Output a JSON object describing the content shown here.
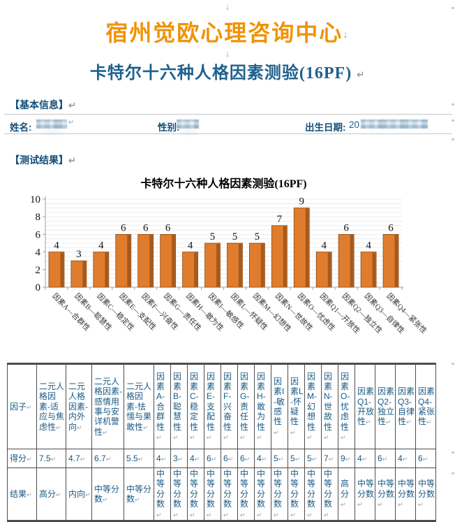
{
  "marks": {
    "down": "↓",
    "return": "↵"
  },
  "colors": {
    "title_orange": "#f09305",
    "heading_blue": "#1e618d",
    "label_blue": "#124e78",
    "table_text": "#1a5a82",
    "bar_fill": "#e07c2e",
    "bar_shade": "#a55a1d",
    "bar_stroke": "#8a4a12"
  },
  "header": {
    "title": "宿州觉欧心理咨询中心",
    "subtitle": "卡特尔十六种人格因素测验(16PF)"
  },
  "basic_info": {
    "section_title": "【基本信息】",
    "fields": [
      {
        "label": "姓名:",
        "value_visible": "",
        "redacted": true
      },
      {
        "label": "性别:",
        "value_visible": "",
        "redacted": true
      },
      {
        "label": "出生日期:",
        "value_visible": "20",
        "redacted": true
      }
    ]
  },
  "results": {
    "section_title": "【测试结果】"
  },
  "chart_data": {
    "type": "bar",
    "title": "卡特尔十六种人格因素测验(16PF)",
    "categories": [
      "因素A—合群性",
      "因素B—聪慧性",
      "因素C—稳定性",
      "因素E—支配性",
      "因素F—兴奋性",
      "因素G—责任性",
      "因素H—敢为性",
      "因素I—敏感性",
      "因素L—怀疑性",
      "因素M—幻想性",
      "因素N—世故性",
      "因素O—忧虑性",
      "因素Q1—开放性",
      "因素Q2—独立性",
      "因素Q3—自律性",
      "因素Q4—紧张性"
    ],
    "values": [
      4,
      3,
      4,
      6,
      6,
      6,
      4,
      5,
      5,
      5,
      7,
      9,
      4,
      6,
      4,
      6
    ],
    "xlabel": "",
    "ylabel": "",
    "ylim": [
      0,
      10
    ],
    "yticks": [
      0,
      2,
      4,
      6,
      8,
      10
    ],
    "grid_step": 0.5,
    "grid": true,
    "legend": false
  },
  "table": {
    "row_labels": [
      "因子",
      "得分",
      "结果"
    ],
    "columns": [
      {
        "factor": "二元人格因素-适应与焦虑性",
        "score": "7.5",
        "result": "高分"
      },
      {
        "factor": "二元人格因素-内外向",
        "score": "4.7",
        "result": "内向"
      },
      {
        "factor": "二元人格因素-感情用事与安详机警性",
        "score": "6.7",
        "result": "中等分数"
      },
      {
        "factor": "二元人格因素-怯懦与果敢性",
        "score": "5.5",
        "result": "中等分数"
      },
      {
        "factor": "因素A-合群性",
        "score": "4",
        "result": "中等分数"
      },
      {
        "factor": "因素B-聪慧性",
        "score": "3",
        "result": "中等分数"
      },
      {
        "factor": "因素C-稳定性",
        "score": "4",
        "result": "中等分数"
      },
      {
        "factor": "因素E-支配性",
        "score": "6",
        "result": "中等分数"
      },
      {
        "factor": "因素F-兴奋性",
        "score": "6",
        "result": "中等分数"
      },
      {
        "factor": "因素G-责任性",
        "score": "6",
        "result": "中等分数"
      },
      {
        "factor": "因素H-敢为性",
        "score": "4",
        "result": "中等分数"
      },
      {
        "factor": "因素I-敏感性",
        "score": "5",
        "result": "中等分数"
      },
      {
        "factor": "因素L-怀疑性",
        "score": "5",
        "result": "中等分数"
      },
      {
        "factor": "因素M-幻想性",
        "score": "5",
        "result": "中等分数"
      },
      {
        "factor": "因素N-世故性",
        "score": "7",
        "result": "中等分数"
      },
      {
        "factor": "因素O-忧虑性",
        "score": "9",
        "result": "高分"
      },
      {
        "factor": "因素Q1-开放性",
        "score": "4",
        "result": "中等分数"
      },
      {
        "factor": "因素Q2-独立性",
        "score": "6",
        "result": "中等分数"
      },
      {
        "factor": "因素Q3-自律性",
        "score": "4",
        "result": "中等分数"
      },
      {
        "factor": "因素Q4-紧张性",
        "score": "6",
        "result": "中等分数"
      }
    ]
  }
}
